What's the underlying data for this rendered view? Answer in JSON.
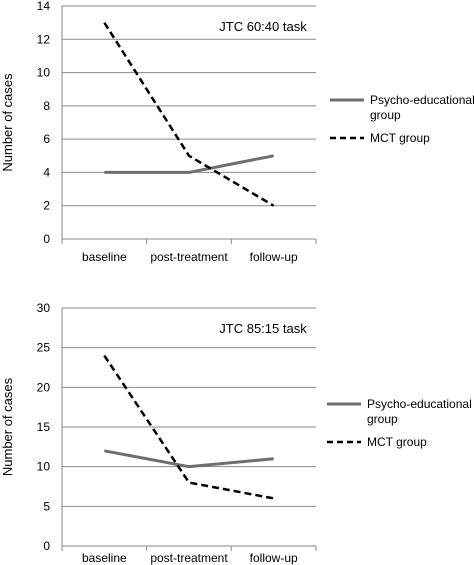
{
  "chart_data": [
    {
      "type": "line",
      "title": "JTC 60:40 task",
      "ylabel": "Number of cases",
      "categories": [
        "baseline",
        "post-treatment",
        "follow-up"
      ],
      "ylim": [
        0,
        14
      ],
      "yticks": [
        0,
        2,
        4,
        6,
        8,
        10,
        12,
        14
      ],
      "grid": true,
      "legend_placement": "right",
      "series": [
        {
          "name": "Psycho-educational group",
          "name_lines": [
            "Psycho-educational",
            "group"
          ],
          "values": [
            4,
            4,
            5
          ],
          "color": "#6e6e6e",
          "style": "solid"
        },
        {
          "name": "MCT group",
          "name_lines": [
            "MCT group"
          ],
          "values": [
            13,
            5,
            2
          ],
          "color": "#000000",
          "style": "dashed"
        }
      ]
    },
    {
      "type": "line",
      "title": "JTC 85:15 task",
      "ylabel": "Number of cases",
      "categories": [
        "baseline",
        "post-treatment",
        "follow-up"
      ],
      "ylim": [
        0,
        30
      ],
      "yticks": [
        0,
        5,
        10,
        15,
        20,
        25,
        30
      ],
      "grid": true,
      "legend_placement": "right",
      "series": [
        {
          "name": "Psycho-educational group",
          "name_lines": [
            "Psycho-educational",
            "group"
          ],
          "values": [
            12,
            10,
            11
          ],
          "color": "#6e6e6e",
          "style": "solid"
        },
        {
          "name": "MCT group",
          "name_lines": [
            "MCT group"
          ],
          "values": [
            24,
            8,
            6
          ],
          "color": "#000000",
          "style": "dashed"
        }
      ]
    }
  ]
}
